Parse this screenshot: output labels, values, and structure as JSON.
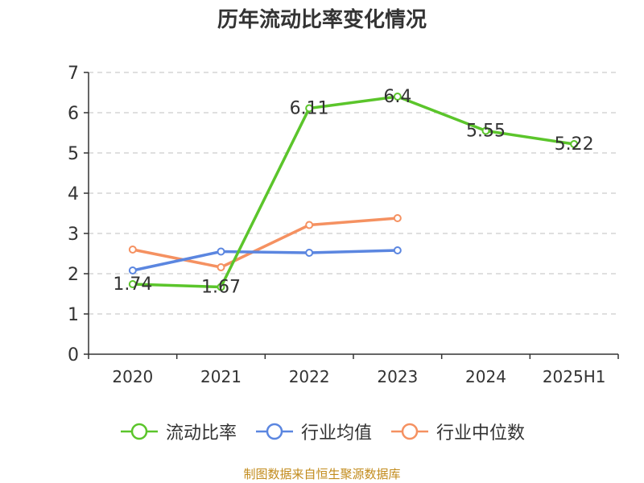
{
  "chart_data": {
    "type": "line",
    "title": "历年流动比率变化情况",
    "categories": [
      "2020",
      "2021",
      "2022",
      "2023",
      "2024",
      "2025H1"
    ],
    "ylim": [
      0,
      7
    ],
    "yticks": [
      "0",
      "1",
      "2",
      "3",
      "4",
      "5",
      "6",
      "7"
    ],
    "grid": true,
    "legend_position": "bottom",
    "series": [
      {
        "name": "流动比率",
        "color": "#5bc52b",
        "values": [
          1.74,
          1.67,
          6.11,
          6.4,
          5.55,
          5.22
        ],
        "labels": [
          "1.74",
          "1.67",
          "6.11",
          "6.4",
          "5.55",
          "5.22"
        ]
      },
      {
        "name": "行业均值",
        "color": "#5b86e0",
        "values": [
          2.08,
          2.55,
          2.52,
          2.58,
          null,
          null
        ]
      },
      {
        "name": "行业中位数",
        "color": "#f59161",
        "values": [
          2.6,
          2.16,
          3.21,
          3.38,
          null,
          null
        ]
      }
    ]
  },
  "footer": {
    "source": "制图数据来自恒生聚源数据库",
    "source_color": "#c28b1c"
  }
}
